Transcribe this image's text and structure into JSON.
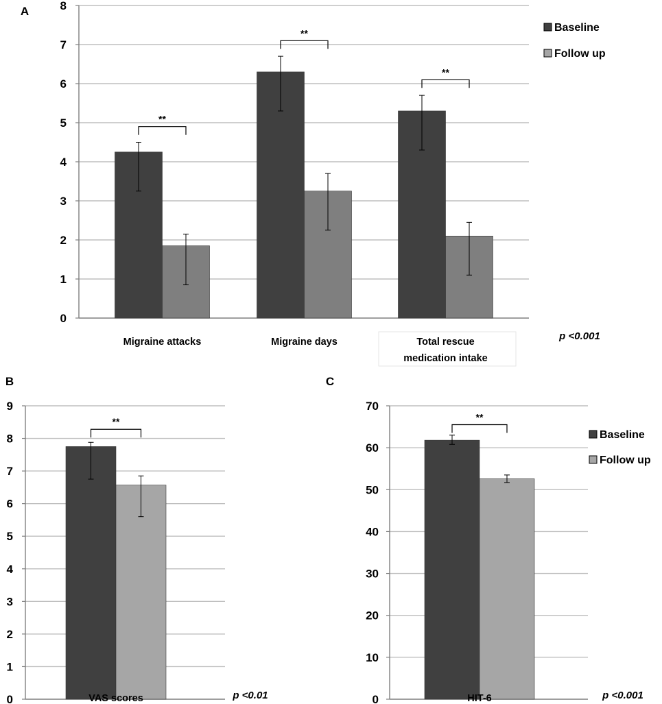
{
  "colors": {
    "baseline": "#404040",
    "follow_up_a": "#7f7f7f",
    "follow_up_bc": "#a6a6a6",
    "legend_follow_up": "#a6a6a6",
    "grid": "#bfbfbf",
    "axis": "#7f7f7f",
    "text": "#000000"
  },
  "chart_data": [
    {
      "id": "A",
      "panel_label": "A",
      "type": "bar",
      "categories": [
        "Migraine attacks",
        "Migraine days",
        "Total rescue medication intake"
      ],
      "category_lines": [
        [
          "Migraine attacks"
        ],
        [
          "Migraine days"
        ],
        [
          "Total rescue",
          "medication intake"
        ]
      ],
      "series": [
        {
          "name": "Baseline",
          "values": [
            4.25,
            6.3,
            5.3
          ],
          "err_low": [
            3.25,
            5.3,
            4.3
          ],
          "err_high": [
            4.5,
            6.7,
            5.7
          ]
        },
        {
          "name": "Follow up",
          "values": [
            1.85,
            3.25,
            2.1
          ],
          "err_low": [
            0.85,
            2.25,
            1.1
          ],
          "err_high": [
            2.15,
            3.7,
            2.45
          ]
        }
      ],
      "ylim": [
        0,
        8
      ],
      "yticks": [
        0,
        1,
        2,
        3,
        4,
        5,
        6,
        7,
        8
      ],
      "grid": true,
      "significance": [
        {
          "group": 0,
          "level": 4.9,
          "label": "**"
        },
        {
          "group": 1,
          "level": 7.1,
          "label": "**"
        },
        {
          "group": 2,
          "level": 6.1,
          "label": "**"
        }
      ],
      "p_value": "p <0.001",
      "legend": {
        "position": "right",
        "entries": [
          "Baseline",
          "Follow up"
        ]
      }
    },
    {
      "id": "B",
      "panel_label": "B",
      "type": "bar",
      "categories": [
        "VAS scores"
      ],
      "category_lines": [
        [
          "VAS scores"
        ]
      ],
      "series": [
        {
          "name": "Baseline",
          "values": [
            7.75
          ],
          "err_low": [
            6.75
          ],
          "err_high": [
            7.88
          ]
        },
        {
          "name": "Follow up",
          "values": [
            6.57
          ],
          "err_low": [
            5.6
          ],
          "err_high": [
            6.85
          ]
        }
      ],
      "ylim": [
        0,
        9
      ],
      "yticks": [
        0,
        1,
        2,
        3,
        4,
        5,
        6,
        7,
        8,
        9
      ],
      "grid": true,
      "significance": [
        {
          "group": 0,
          "level": 8.28,
          "label": "**"
        }
      ],
      "p_value": "p <0.01",
      "legend": null
    },
    {
      "id": "C",
      "panel_label": "C",
      "type": "bar",
      "categories": [
        "HIT-6"
      ],
      "category_lines": [
        [
          "HIT-6"
        ]
      ],
      "series": [
        {
          "name": "Baseline",
          "values": [
            61.8
          ],
          "err_low": [
            60.8
          ],
          "err_high": [
            63.0
          ]
        },
        {
          "name": "Follow up",
          "values": [
            52.6
          ],
          "err_low": [
            51.7
          ],
          "err_high": [
            53.5
          ]
        }
      ],
      "ylim": [
        0,
        70
      ],
      "yticks": [
        0,
        10,
        20,
        30,
        40,
        50,
        60,
        70
      ],
      "grid": true,
      "significance": [
        {
          "group": 0,
          "level": 65.5,
          "label": "**"
        }
      ],
      "p_value": "p <0.001",
      "legend": {
        "position": "right",
        "entries": [
          "Baseline",
          "Follow up"
        ]
      }
    }
  ]
}
